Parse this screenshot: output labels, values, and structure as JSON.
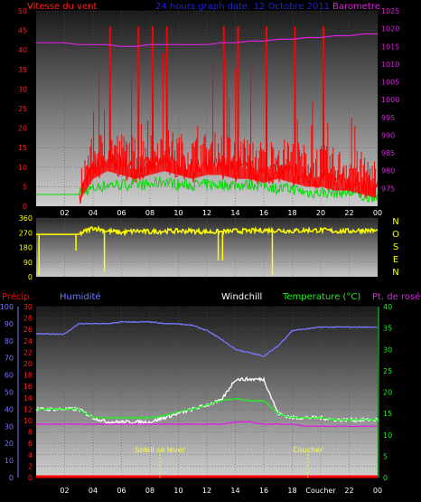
{
  "header": {
    "wind_label": "Vitesse du vent",
    "title": "24 hours graph date: 12 Octobre 2011",
    "baro_label": "Barometre"
  },
  "colors": {
    "wind": "#ff0000",
    "gust": "#00dd00",
    "baro": "#dd22dd",
    "direction": "#ffff00",
    "humidity": "#7777ff",
    "temperature": "#22ee22",
    "dewpoint": "#dd22dd",
    "windchill": "#ffffff",
    "precip": "#ff0000",
    "title": "#2222dd",
    "axis_text": "#ff2020",
    "sun": "#ffff44"
  },
  "x_ticks": [
    "02",
    "04",
    "06",
    "08",
    "10",
    "12",
    "14",
    "16",
    "18",
    "20",
    "22",
    "00"
  ],
  "x_ticks_bottom": [
    "02",
    "04",
    "06",
    "08",
    "10",
    "12",
    "14",
    "16",
    "18",
    "Coucher",
    "22",
    "00"
  ],
  "chart_data": [
    {
      "type": "line",
      "name": "wind-pressure",
      "title": "",
      "y_left": {
        "label": "Vitesse du vent",
        "range": [
          0,
          50
        ],
        "ticks": [
          "0",
          "5",
          "10",
          "15",
          "20",
          "25",
          "30",
          "35",
          "40",
          "45",
          "50"
        ]
      },
      "y_right": {
        "label": "Barometre",
        "range": [
          970,
          1025
        ],
        "ticks": [
          "975",
          "980",
          "985",
          "990",
          "995",
          "1000",
          "1005",
          "1010",
          "1015",
          "1020",
          "1025"
        ]
      },
      "x_hours": [
        0,
        1,
        2,
        3,
        4,
        5,
        6,
        7,
        8,
        9,
        10,
        11,
        12,
        13,
        14,
        15,
        16,
        17,
        18,
        19,
        20,
        21,
        22,
        23,
        24
      ],
      "series": [
        {
          "key": "wind_avg",
          "values": [
            3,
            3,
            3,
            3,
            9,
            11,
            10,
            9,
            10,
            11,
            10,
            9,
            10,
            10,
            9,
            9,
            8,
            9,
            8,
            7,
            7,
            6,
            6,
            5,
            4
          ]
        },
        {
          "key": "gust_peaks",
          "values": [
            3,
            3,
            3,
            3,
            20,
            46,
            20,
            46,
            46,
            46,
            25,
            15,
            20,
            46,
            46,
            20,
            46,
            12,
            46,
            15,
            46,
            20,
            12,
            10,
            6
          ]
        },
        {
          "key": "gust_min",
          "values": [
            3,
            3,
            3,
            3,
            4,
            5,
            5,
            5,
            5,
            6,
            5,
            5,
            5,
            5,
            5,
            5,
            5,
            4,
            4,
            3,
            3,
            3,
            3,
            2,
            2
          ]
        },
        {
          "key": "pressure",
          "values": [
            1016,
            1016,
            1016,
            1015.5,
            1015.5,
            1015.5,
            1015,
            1015,
            1015.5,
            1015.5,
            1015.5,
            1015.5,
            1015.5,
            1016,
            1016,
            1016.5,
            1016.5,
            1017,
            1017,
            1017.5,
            1017.5,
            1018,
            1018,
            1018.5,
            1018.5
          ]
        }
      ]
    },
    {
      "type": "line",
      "name": "wind-direction",
      "y_left": {
        "range": [
          0,
          360
        ],
        "ticks": [
          "0",
          "90",
          "180",
          "270",
          "360"
        ]
      },
      "compass": [
        "N",
        "O",
        "S",
        "E",
        "N"
      ],
      "x_hours": [
        0,
        1,
        2,
        3,
        4,
        5,
        6,
        7,
        8,
        9,
        10,
        11,
        12,
        13,
        14,
        15,
        16,
        17,
        18,
        19,
        20,
        21,
        22,
        23,
        24
      ],
      "values": [
        260,
        260,
        260,
        260,
        300,
        280,
        270,
        280,
        275,
        280,
        280,
        280,
        275,
        275,
        280,
        280,
        285,
        285,
        280,
        285,
        285,
        280,
        280,
        285,
        280
      ],
      "dips": [
        [
          0.2,
          10
        ],
        [
          2.8,
          160
        ],
        [
          4.8,
          30
        ],
        [
          12.8,
          100
        ],
        [
          13.1,
          100
        ],
        [
          16.6,
          10
        ]
      ]
    },
    {
      "type": "line",
      "name": "humidity-temperature",
      "labels": {
        "precip": "Précip.",
        "humidity": "Humidité",
        "windchill": "Windchill",
        "temperature": "Temperature (°C)",
        "dewpoint": "Pt. de rosée"
      },
      "y_humidity": {
        "range": [
          0,
          100
        ],
        "ticks": [
          "0",
          "10",
          "20",
          "30",
          "40",
          "50",
          "60",
          "70",
          "80",
          "90",
          "100"
        ]
      },
      "y_precip": {
        "range": [
          0,
          30
        ],
        "ticks": [
          "0",
          "2",
          "4",
          "6",
          "8",
          "10",
          "12",
          "14",
          "16",
          "18",
          "20",
          "22",
          "24",
          "26",
          "28",
          "30"
        ]
      },
      "y_temp": {
        "range": [
          0,
          40
        ],
        "ticks": [
          "0",
          "5",
          "10",
          "15",
          "20",
          "25",
          "30",
          "35",
          "40"
        ]
      },
      "sun": {
        "sunrise_label": "Soleil se lever",
        "sunset_label": "Coucher",
        "sunrise_hour": 8.7,
        "sunset_hour": 19.1
      },
      "x_hours": [
        0,
        1,
        2,
        3,
        4,
        5,
        6,
        7,
        8,
        9,
        10,
        11,
        12,
        13,
        14,
        15,
        16,
        17,
        18,
        19,
        20,
        21,
        22,
        23,
        24
      ],
      "series": [
        {
          "key": "humidity",
          "values": [
            84,
            84,
            84,
            90,
            90,
            90,
            91,
            91,
            91,
            90,
            90,
            89,
            86,
            81,
            75,
            73,
            71,
            77,
            86,
            87,
            88,
            88,
            88,
            88,
            88
          ]
        },
        {
          "key": "temperature",
          "values": [
            16,
            16,
            16,
            16,
            14,
            14,
            14,
            14,
            14,
            14.5,
            15.5,
            16,
            17,
            18,
            18.5,
            18,
            18,
            15,
            14,
            14,
            14,
            13.5,
            13.5,
            13.5,
            13.5
          ]
        },
        {
          "key": "windchill",
          "values": [
            16,
            16,
            16,
            16,
            14,
            13,
            13,
            13,
            13,
            14,
            15,
            16,
            17,
            18,
            23,
            23,
            23,
            15,
            14,
            14,
            14,
            13.5,
            13.5,
            13.5,
            13.5
          ]
        },
        {
          "key": "dewpoint",
          "values": [
            12.5,
            12.5,
            12.5,
            12.5,
            12.5,
            12.5,
            12.5,
            12.5,
            12.5,
            12.5,
            12.5,
            12.5,
            12.5,
            12.5,
            13,
            13,
            12.5,
            12.5,
            12.5,
            12,
            12,
            12,
            12,
            12,
            12
          ]
        },
        {
          "key": "precip",
          "values": [
            0,
            0,
            0,
            0,
            0,
            0,
            0,
            0,
            0,
            0,
            0,
            0,
            0,
            0,
            0,
            0,
            0,
            0,
            0,
            0,
            0,
            0,
            0,
            0,
            0
          ]
        }
      ]
    }
  ]
}
